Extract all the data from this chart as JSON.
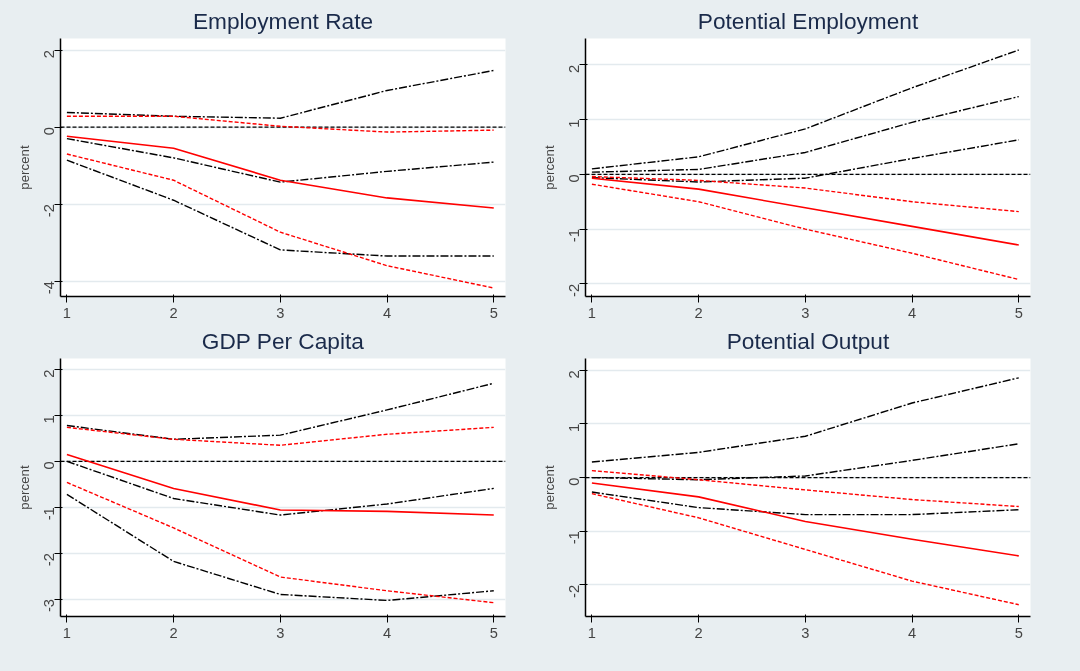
{
  "chart_data": [
    {
      "type": "line",
      "title": "Employment Rate",
      "ylabel": "percent",
      "x": [
        1,
        2,
        3,
        4,
        5
      ],
      "xlim": [
        0.94,
        5.11
      ],
      "xticks": [
        1,
        2,
        3,
        4,
        5
      ],
      "ylim": [
        -4.4,
        2.3
      ],
      "yticks": [
        2,
        0,
        -2,
        -4
      ],
      "grid": "y",
      "ref_lines": [
        {
          "axis": "y",
          "value": 0,
          "color": "#000000",
          "line_style": "dotted"
        }
      ],
      "series": [
        {
          "color": "#000000",
          "line_style": "dashed",
          "values": [
            0.38,
            0.28,
            0.23,
            0.95,
            1.47
          ]
        },
        {
          "color": "#000000",
          "line_style": "dashed",
          "values": [
            -0.3,
            -0.8,
            -1.43,
            -1.15,
            -0.91
          ]
        },
        {
          "color": "#000000",
          "line_style": "dashed",
          "values": [
            -0.86,
            -1.9,
            -3.19,
            -3.35,
            -3.35
          ]
        },
        {
          "color": "#ff0000",
          "line_style": "dotted",
          "values": [
            0.28,
            0.28,
            0.02,
            -0.13,
            -0.08
          ]
        },
        {
          "color": "#ff0000",
          "line_style": "dotted",
          "values": [
            -0.7,
            -1.38,
            -2.73,
            -3.6,
            -4.18
          ]
        },
        {
          "color": "#ff0000",
          "line_style": "solid",
          "values": [
            -0.24,
            -0.55,
            -1.38,
            -1.84,
            -2.1
          ]
        }
      ]
    },
    {
      "type": "line",
      "title": "Potential Employment",
      "ylabel": "percent",
      "x": [
        1,
        2,
        3,
        4,
        5
      ],
      "xlim": [
        0.94,
        5.11
      ],
      "xticks": [
        1,
        2,
        3,
        4,
        5
      ],
      "ylim": [
        -2.23,
        2.48
      ],
      "yticks": [
        2,
        1,
        0,
        -1,
        -2
      ],
      "grid": "y",
      "ref_lines": [
        {
          "axis": "y",
          "value": 0,
          "color": "#000000",
          "line_style": "dotted"
        }
      ],
      "series": [
        {
          "color": "#000000",
          "line_style": "dashed",
          "values": [
            0.1,
            0.32,
            0.83,
            1.58,
            2.27
          ]
        },
        {
          "color": "#000000",
          "line_style": "dashed",
          "values": [
            0.04,
            0.09,
            0.4,
            0.95,
            1.42
          ]
        },
        {
          "color": "#000000",
          "line_style": "dashed",
          "values": [
            -0.06,
            -0.14,
            -0.07,
            0.29,
            0.63
          ]
        },
        {
          "color": "#ff0000",
          "line_style": "dotted",
          "values": [
            -0.04,
            -0.11,
            -0.25,
            -0.5,
            -0.68
          ]
        },
        {
          "color": "#ff0000",
          "line_style": "dotted",
          "values": [
            -0.18,
            -0.5,
            -1.0,
            -1.44,
            -1.92
          ]
        },
        {
          "color": "#ff0000",
          "line_style": "solid",
          "values": [
            -0.07,
            -0.27,
            -0.61,
            -0.95,
            -1.29
          ]
        }
      ]
    },
    {
      "type": "line",
      "title": "GDP Per Capita",
      "ylabel": "percent",
      "x": [
        1,
        2,
        3,
        4,
        5
      ],
      "xlim": [
        0.94,
        5.11
      ],
      "xticks": [
        1,
        2,
        3,
        4,
        5
      ],
      "ylim": [
        -3.38,
        2.24
      ],
      "yticks": [
        2,
        1,
        0,
        -1,
        -2,
        -3
      ],
      "grid": "y",
      "ref_lines": [
        {
          "axis": "y",
          "value": 0,
          "color": "#000000",
          "line_style": "dotted"
        }
      ],
      "series": [
        {
          "color": "#000000",
          "line_style": "dashed",
          "values": [
            0.78,
            0.48,
            0.57,
            1.12,
            1.7
          ]
        },
        {
          "color": "#000000",
          "line_style": "dashed",
          "values": [
            0,
            -0.81,
            -1.17,
            -0.93,
            -0.59
          ]
        },
        {
          "color": "#000000",
          "line_style": "dashed",
          "values": [
            -0.72,
            -2.18,
            -2.9,
            -3.03,
            -2.82
          ]
        },
        {
          "color": "#ff0000",
          "line_style": "dotted",
          "values": [
            0.74,
            0.48,
            0.35,
            0.59,
            0.74
          ]
        },
        {
          "color": "#ff0000",
          "line_style": "dotted",
          "values": [
            -0.46,
            -1.45,
            -2.52,
            -2.82,
            -3.08
          ]
        },
        {
          "color": "#ff0000",
          "line_style": "solid",
          "values": [
            0.15,
            -0.59,
            -1.06,
            -1.09,
            -1.17
          ]
        }
      ]
    },
    {
      "type": "line",
      "title": "Potential Output",
      "ylabel": "percent",
      "x": [
        1,
        2,
        3,
        4,
        5
      ],
      "xlim": [
        0.94,
        5.11
      ],
      "xticks": [
        1,
        2,
        3,
        4,
        5
      ],
      "ylim": [
        -2.59,
        2.22
      ],
      "yticks": [
        2,
        1,
        0,
        -1,
        -2
      ],
      "grid": "y",
      "ref_lines": [
        {
          "axis": "y",
          "value": 0,
          "color": "#000000",
          "line_style": "dotted"
        }
      ],
      "series": [
        {
          "color": "#000000",
          "line_style": "dashed",
          "values": [
            0.29,
            0.47,
            0.77,
            1.39,
            1.86
          ]
        },
        {
          "color": "#000000",
          "line_style": "dashed",
          "values": [
            0,
            -0.04,
            0.03,
            0.32,
            0.63
          ]
        },
        {
          "color": "#000000",
          "line_style": "dashed",
          "values": [
            -0.27,
            -0.56,
            -0.69,
            -0.69,
            -0.6
          ]
        },
        {
          "color": "#ff0000",
          "line_style": "dotted",
          "values": [
            0.13,
            -0.04,
            -0.23,
            -0.41,
            -0.54
          ]
        },
        {
          "color": "#ff0000",
          "line_style": "dotted",
          "values": [
            -0.3,
            -0.75,
            -1.34,
            -1.93,
            -2.37
          ]
        },
        {
          "color": "#ff0000",
          "line_style": "solid",
          "values": [
            -0.1,
            -0.36,
            -0.82,
            -1.15,
            -1.46
          ]
        }
      ]
    }
  ]
}
